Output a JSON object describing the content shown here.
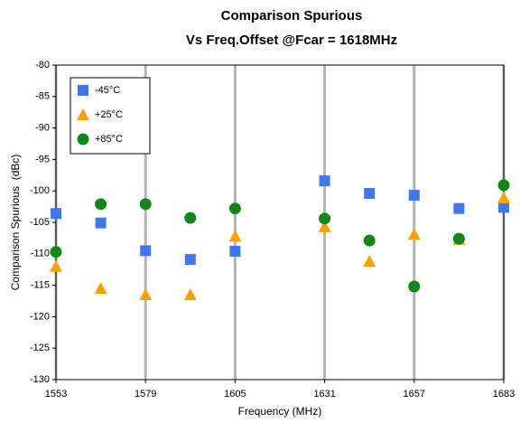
{
  "chart_data": {
    "type": "scatter",
    "title": "Comparison Spurious",
    "subtitle": "Vs Freq.Offset @Fcar = 1618MHz",
    "x_label": "Frequency (MHz)",
    "y_label": "Comparison Spurious  (dBc)",
    "x": [
      1553,
      1566,
      1579,
      1592,
      1605,
      1631,
      1644,
      1657,
      1670,
      1683
    ],
    "series": [
      {
        "name": "-45°C",
        "color": "#3f78ee",
        "marker": "square",
        "values": [
          -103.6,
          -105.1,
          -109.5,
          -110.9,
          -109.6,
          -98.4,
          -100.4,
          -100.7,
          -102.8,
          -102.6
        ]
      },
      {
        "name": "+25°C",
        "color": "#ffa000",
        "marker": "triangle",
        "values": [
          -112.0,
          -115.5,
          -116.5,
          -116.5,
          -107.2,
          -105.7,
          -111.2,
          -106.9,
          -107.7,
          -101.1
        ]
      },
      {
        "name": "+85°C",
        "color": "#13861a",
        "marker": "circle",
        "values": [
          -109.7,
          -102.1,
          -102.1,
          -104.3,
          -102.8,
          -104.4,
          -107.9,
          -115.2,
          -107.6,
          -99.1
        ]
      }
    ],
    "xlim": [
      1553,
      1683
    ],
    "xticks": [
      1553,
      1579,
      1605,
      1631,
      1657,
      1683
    ],
    "ylim": [
      -130,
      -80
    ],
    "yticks": [
      -80,
      -85,
      -90,
      -95,
      -100,
      -105,
      -110,
      -115,
      -120,
      -125,
      -130
    ],
    "grid": "x",
    "legend": "upper left"
  }
}
